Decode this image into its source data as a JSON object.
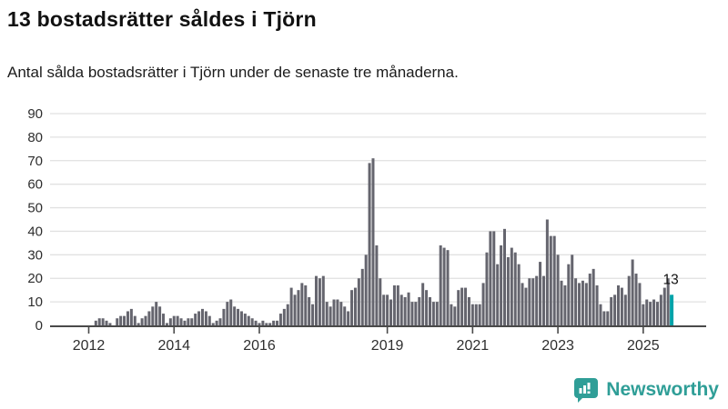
{
  "header": {
    "title": "13 bostadsrätter såldes i Tjörn",
    "subtitle": "Antal sålda bostadsrätter i Tjörn under de senaste tre månaderna."
  },
  "chart_data": {
    "type": "bar",
    "title": "13 bostadsrätter såldes i Tjörn",
    "ylabel": "",
    "xlabel": "",
    "unit": "antal sålda bostadsrätter (rullande 3 månader)",
    "frequency": "monthly",
    "x_start": "2012-01",
    "x_end": "2025-09",
    "ylim": [
      0,
      90
    ],
    "grid": true,
    "yticks": [
      0,
      10,
      20,
      30,
      40,
      50,
      60,
      70,
      80,
      90
    ],
    "xtick_years": [
      2012,
      2014,
      2016,
      2019,
      2021,
      2023,
      2025
    ],
    "values": [
      0,
      0,
      2,
      3,
      3,
      2,
      1,
      0,
      3,
      4,
      4,
      6,
      7,
      4,
      1,
      3,
      4,
      6,
      8,
      10,
      8,
      5,
      1,
      3,
      4,
      4,
      3,
      2,
      3,
      3,
      5,
      6,
      7,
      6,
      4,
      1,
      2,
      3,
      7,
      10,
      11,
      8,
      7,
      6,
      5,
      4,
      3,
      2,
      1,
      2,
      1,
      1,
      2,
      2,
      5,
      7,
      9,
      16,
      13,
      15,
      18,
      17,
      12,
      9,
      21,
      20,
      21,
      10,
      8,
      11,
      11,
      10,
      8,
      6,
      15,
      16,
      20,
      24,
      30,
      69,
      71,
      34,
      20,
      13,
      13,
      11,
      17,
      17,
      13,
      12,
      14,
      10,
      10,
      12,
      18,
      15,
      12,
      10,
      10,
      34,
      33,
      32,
      9,
      8,
      15,
      16,
      16,
      12,
      9,
      9,
      9,
      18,
      31,
      40,
      40,
      26,
      34,
      41,
      29,
      33,
      31,
      26,
      18,
      16,
      20,
      20,
      21,
      27,
      21,
      45,
      38,
      38,
      30,
      19,
      17,
      26,
      30,
      20,
      18,
      19,
      18,
      22,
      24,
      17,
      9,
      6,
      6,
      12,
      13,
      17,
      16,
      13,
      21,
      28,
      22,
      18,
      9,
      11,
      10,
      11,
      10,
      13,
      16,
      20,
      13
    ],
    "highlight": {
      "index": 164,
      "value": 13,
      "label": "13",
      "period": "2025-09"
    },
    "colors": {
      "bar": "#65656e",
      "highlight": "#00a3a9",
      "grid": "#e1e1e1",
      "axis": "#4a4a4a",
      "tick_label": "#2e2e2e",
      "annotation": "#111111"
    },
    "legend": []
  },
  "footer": {
    "brand": "Newsworthy",
    "logo_icon": "newsworthy-speech-bubble-bar-chart-icon",
    "brand_color": "#2f9e97"
  }
}
